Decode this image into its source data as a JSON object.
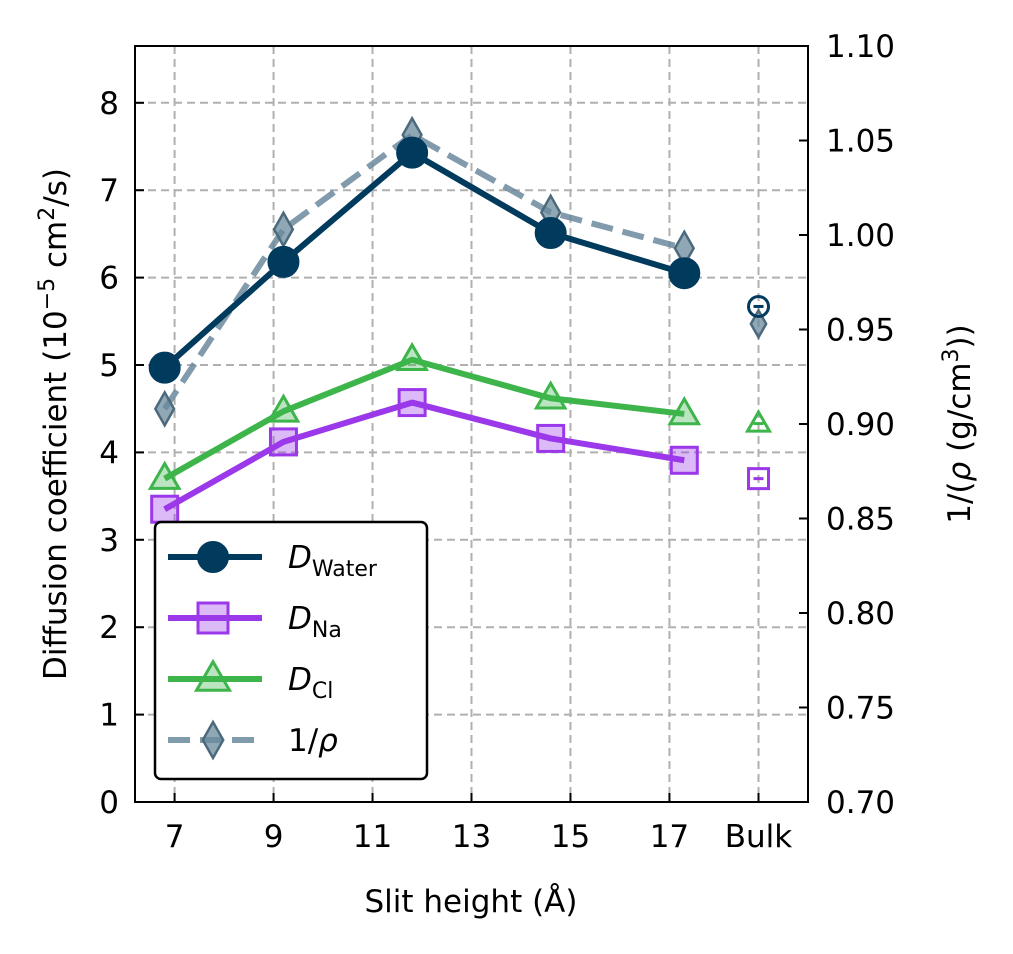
{
  "chart_data": {
    "type": "line",
    "xlabel": "Slit height (Å)",
    "ylabel_left": {
      "prefix": "Diffusion coefficient (10",
      "exp1": "−5",
      "mid": " cm",
      "exp2": "2",
      "suffix": "/s)"
    },
    "ylabel_right": {
      "prefix": "1/(",
      "rho": "ρ",
      "mid": " (g/cm",
      "exp": "3",
      "suffix": "))"
    },
    "x_ticks": [
      7,
      9,
      11,
      13,
      15,
      17
    ],
    "x_ticklabels": [
      "7",
      "9",
      "11",
      "13",
      "15",
      "17",
      "Bulk"
    ],
    "bulk_x_position": 18.8,
    "xlim": [
      6.2,
      19.8
    ],
    "ylim_left": [
      0,
      8.65
    ],
    "ylim_right": [
      0.7,
      1.1
    ],
    "y_ticks_left": [
      "0",
      "1",
      "2",
      "3",
      "4",
      "5",
      "6",
      "7",
      "8"
    ],
    "y_ticks_right": [
      "0.70",
      "0.75",
      "0.80",
      "0.85",
      "0.90",
      "0.95",
      "1.00",
      "1.05",
      "1.10"
    ],
    "grid": true,
    "legend_placement": "lower-left",
    "series": [
      {
        "key": "water",
        "name": "D",
        "name_sub": "Water",
        "axis": "left",
        "color": "#003a5c",
        "marker": "circle",
        "x": [
          6.8,
          9.2,
          11.8,
          14.6,
          17.3
        ],
        "y": [
          4.97,
          6.18,
          7.43,
          6.51,
          6.05
        ],
        "bulk": 5.67,
        "dashed": false
      },
      {
        "key": "na",
        "name": "D",
        "name_sub": "Na",
        "axis": "left",
        "color": "#9b38ea",
        "marker": "square",
        "x": [
          6.8,
          9.2,
          11.8,
          14.6,
          17.3
        ],
        "y": [
          3.35,
          4.12,
          4.57,
          4.16,
          3.91
        ],
        "bulk": 3.7,
        "dashed": false
      },
      {
        "key": "cl",
        "name": "D",
        "name_sub": "Cl",
        "axis": "left",
        "color": "#3db54a",
        "marker": "triangle",
        "x": [
          6.8,
          9.2,
          11.8,
          14.6,
          17.3
        ],
        "y": [
          3.7,
          4.47,
          5.06,
          4.62,
          4.44
        ],
        "bulk": 4.33,
        "dashed": false
      },
      {
        "key": "rho",
        "name": "1/ρ",
        "name_sub": "",
        "axis": "right",
        "color": "#6b8a9e",
        "marker": "diamond",
        "x": [
          6.8,
          9.2,
          11.8,
          14.6,
          17.3
        ],
        "y": [
          0.908,
          1.003,
          1.053,
          1.012,
          0.993
        ],
        "bulk": 0.953,
        "dashed": true
      }
    ]
  }
}
